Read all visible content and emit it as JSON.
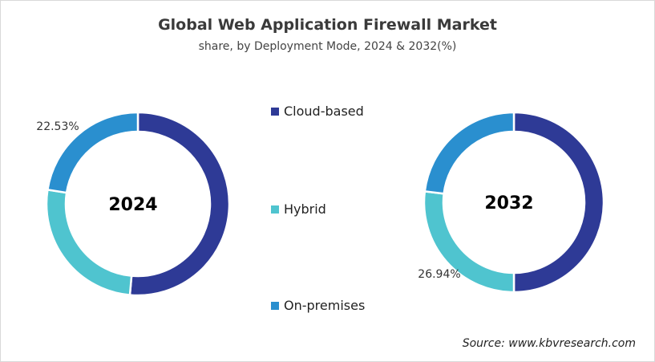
{
  "chart_data": {
    "type": "pie",
    "title": "Global Web Application Firewall Market",
    "subtitle": "share, by Deployment Mode, 2024 & 2032(%)",
    "legend": {
      "placement": "center",
      "entries": [
        "Cloud-based",
        "Hybrid",
        "On-premises"
      ]
    },
    "colors": {
      "Cloud-based": "#2e3a96",
      "Hybrid": "#4fc4cf",
      "On-premises": "#2a8fcf"
    },
    "charts": [
      {
        "year": "2024",
        "values": {
          "Cloud-based": 51.4,
          "Hybrid": 26.07,
          "On-premises": 22.53
        },
        "label": "22.53%",
        "labeled_series": "On-premises"
      },
      {
        "year": "2032",
        "values": {
          "Cloud-based": 50.0,
          "Hybrid": 26.94,
          "On-premises": 23.06
        },
        "label": "26.94%",
        "labeled_series": "Hybrid"
      }
    ]
  },
  "source": "Source: www.kbvresearch.com"
}
